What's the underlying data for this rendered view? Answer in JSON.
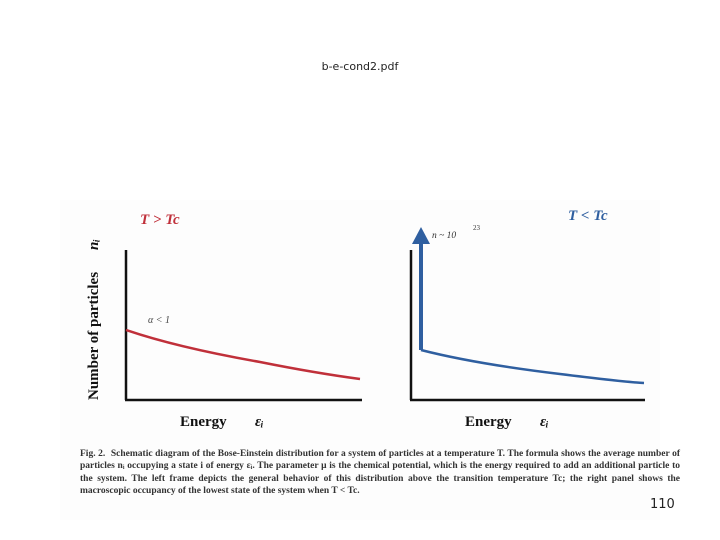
{
  "slide": {
    "file_title": "b-e-cond2.pdf",
    "page_number": "110"
  },
  "figure": {
    "left_panel": {
      "title": "T > Tc",
      "annotation": "α < 1",
      "curve_color": "#c0303a"
    },
    "right_panel": {
      "title": "T < Tc",
      "annotation": "n ~ 10",
      "annotation_exp": "23",
      "curve_color": "#2f5fa0"
    },
    "y_axis_label": "Number of particles",
    "y_axis_symbol": "nᵢ",
    "x_axis_label": "Energy",
    "x_axis_symbol": "εᵢ",
    "axis_color": "#111111"
  },
  "caption": {
    "lead": "Fig. 2.",
    "text": "Schematic diagram of the Bose-Einstein distribution for a system of particles at a temperature T. The formula shows the average number of particles nᵢ occupying a state i of energy εᵢ. The parameter μ is the chemical potential, which is the energy required to add an additional particle to the system. The left frame depicts the general behavior of this distribution above the transition temperature Tc; the right panel shows the macroscopic occupancy of the lowest state of the system when T < Tc."
  }
}
